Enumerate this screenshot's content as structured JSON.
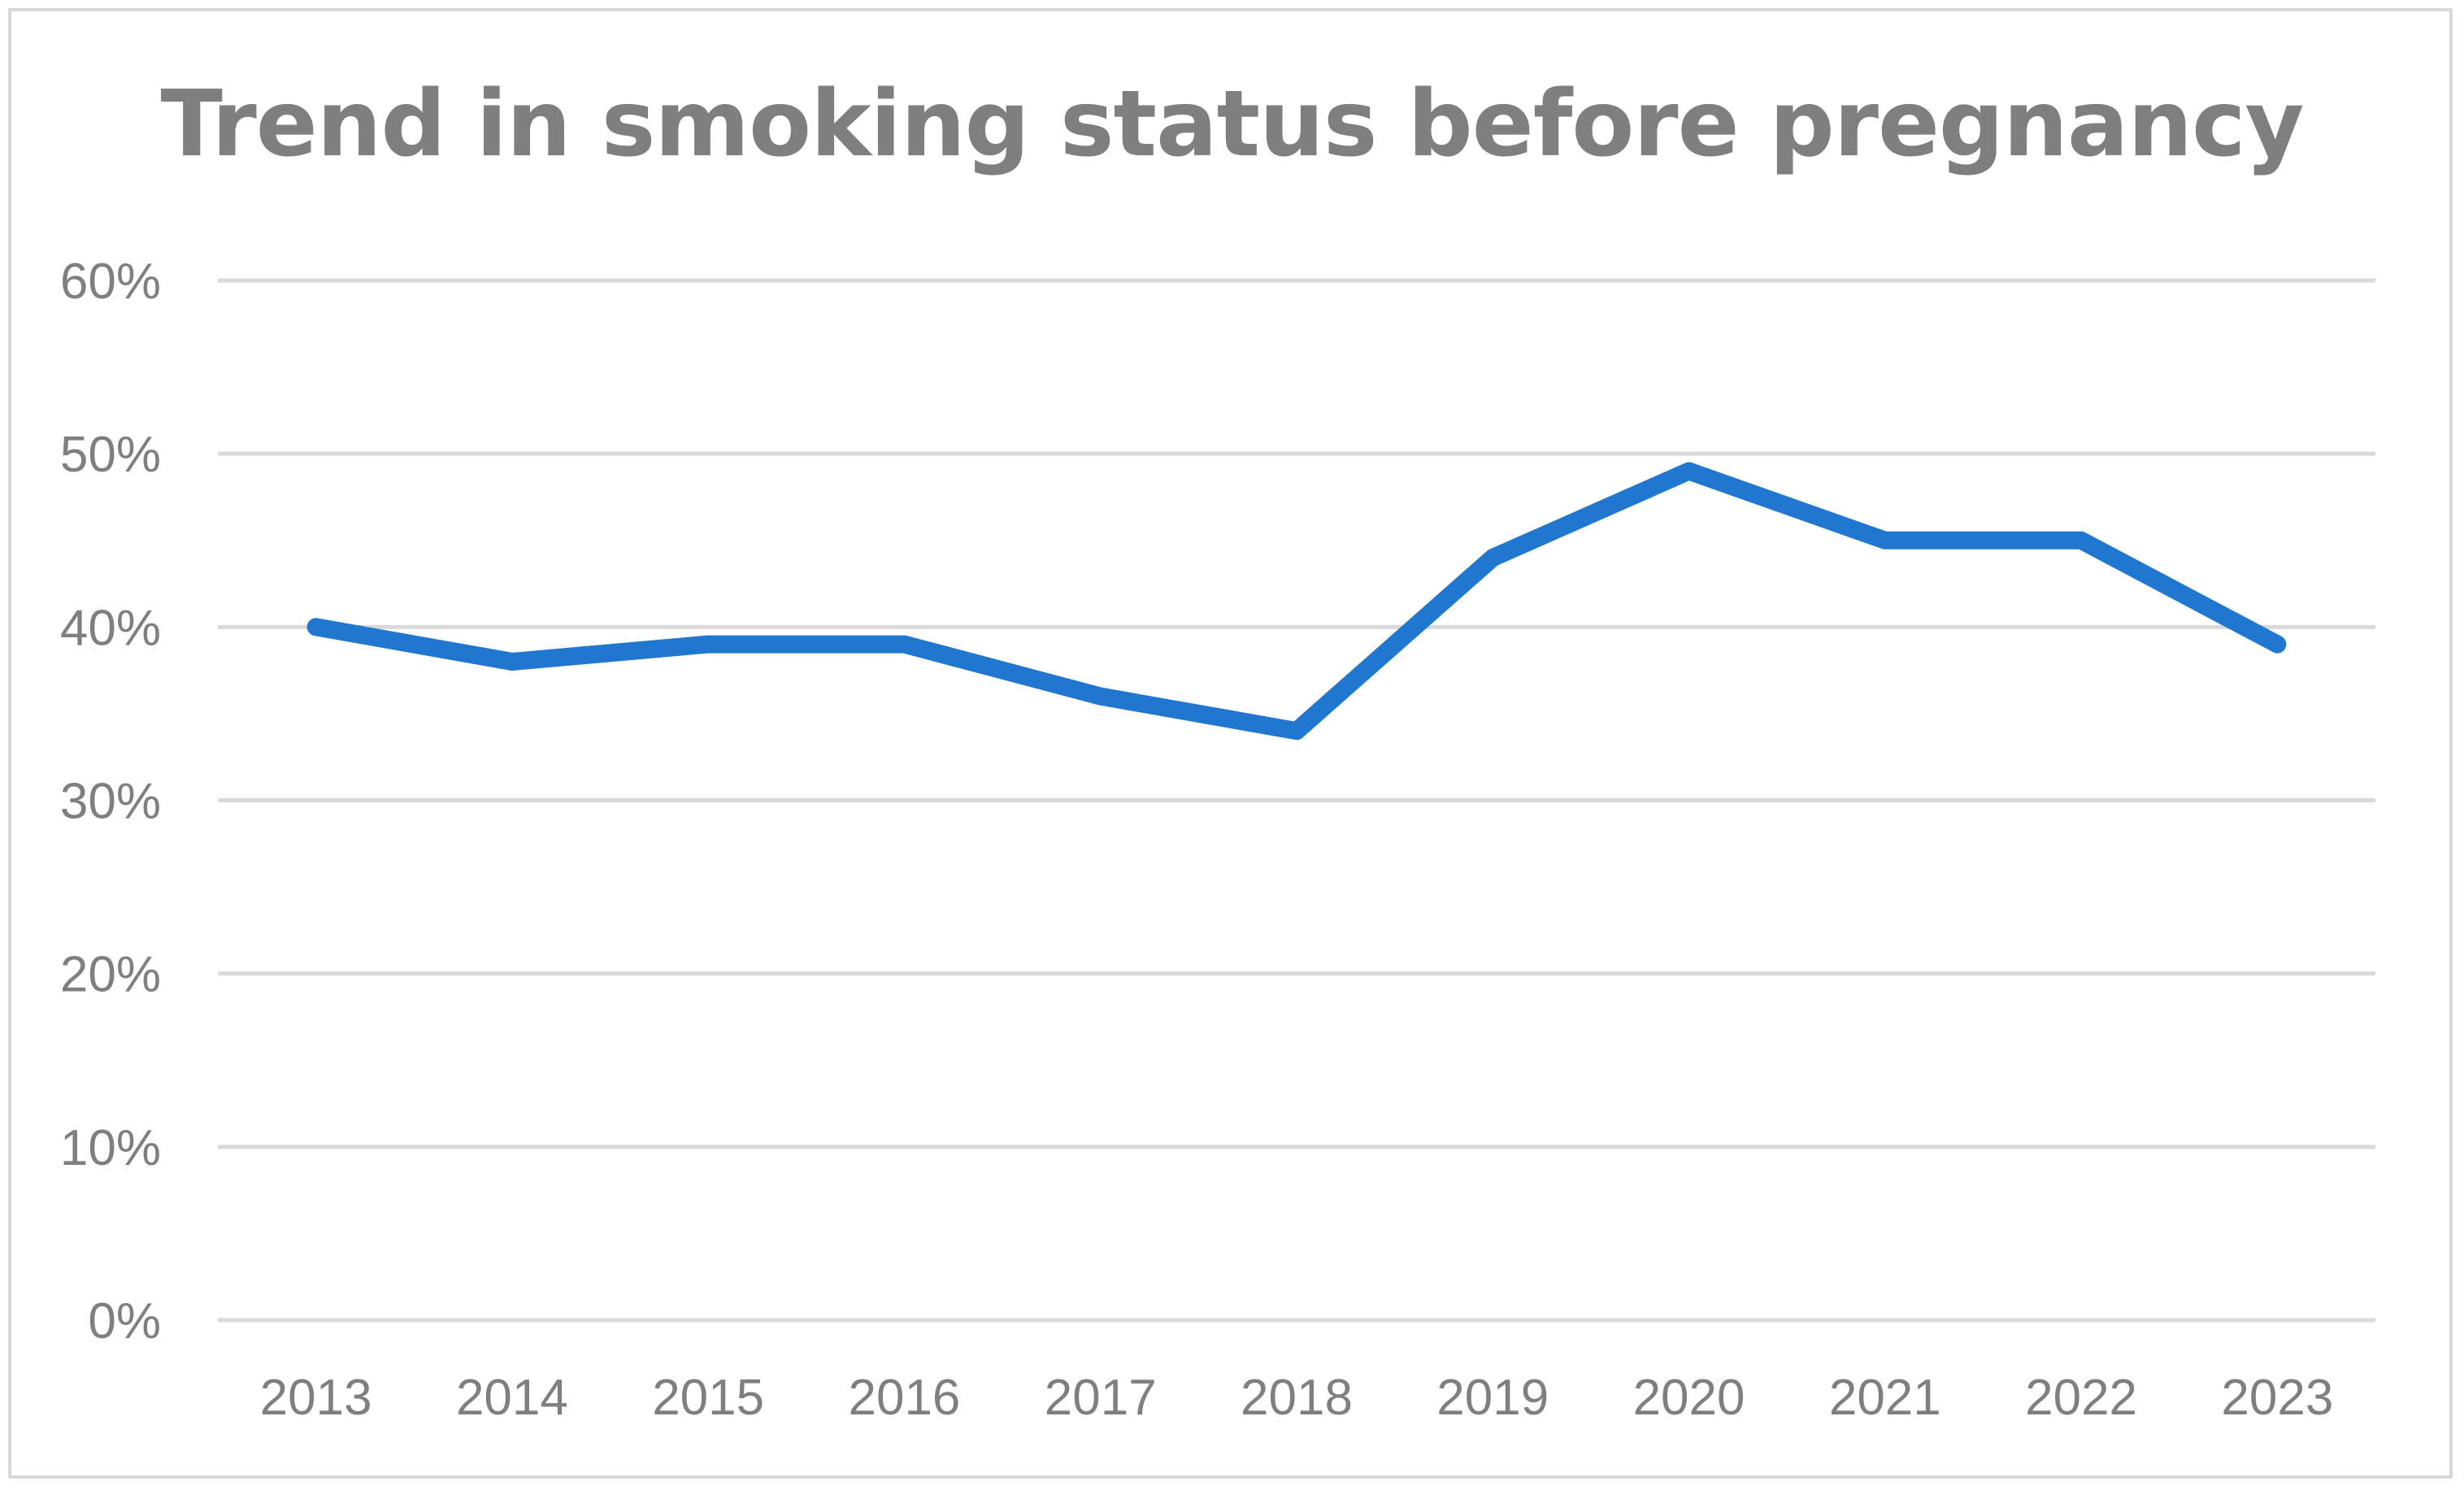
{
  "chart_data": {
    "type": "line",
    "title": "Trend in smoking status before pregnancy",
    "xlabel": "",
    "ylabel": "",
    "categories": [
      "2013",
      "2014",
      "2015",
      "2016",
      "2017",
      "2018",
      "2019",
      "2020",
      "2021",
      "2022",
      "2023"
    ],
    "series": [
      {
        "values": [
          0.4,
          0.38,
          0.39,
          0.39,
          0.36,
          0.34,
          0.44,
          0.49,
          0.45,
          0.45,
          0.39
        ]
      }
    ],
    "ylim": [
      0,
      0.6
    ],
    "yticks": [
      "0%",
      "10%",
      "20%",
      "30%",
      "40%",
      "50%",
      "60%"
    ],
    "grid": true,
    "legend": "none",
    "colors": {
      "line": "#1f77d0",
      "grid": "#d9d9d9",
      "text": "#7f7f7f",
      "border": "#d9d9d9"
    }
  }
}
